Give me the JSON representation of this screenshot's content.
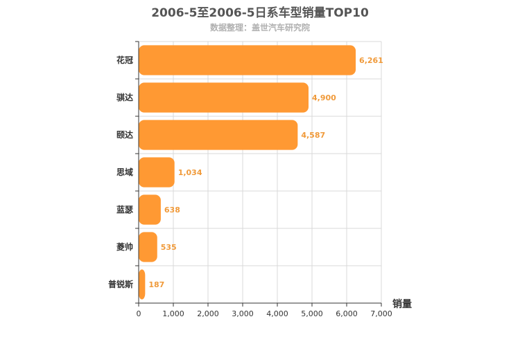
{
  "chart_data": {
    "type": "bar",
    "orientation": "horizontal",
    "title": "2006-5至2006-5日系车型销量TOP10",
    "subtitle": "数据整理：盖世汽车研究院",
    "categories": [
      "花冠",
      "骐达",
      "颐达",
      "思域",
      "蓝瑟",
      "菱帅",
      "普锐斯"
    ],
    "values": [
      6261,
      4900,
      4587,
      1034,
      638,
      535,
      187
    ],
    "value_labels": [
      "6,261",
      "4,900",
      "4,587",
      "1,034",
      "638",
      "535",
      "187"
    ],
    "xlabel": "销量",
    "xlim": [
      0,
      7000
    ],
    "xticks": [
      0,
      1000,
      2000,
      3000,
      4000,
      5000,
      6000,
      7000
    ],
    "xtick_labels": [
      "0",
      "1,000",
      "2,000",
      "3,000",
      "4,000",
      "5,000",
      "6,000",
      "7,000"
    ],
    "grid": true,
    "bar_color": "#ff9933",
    "label_color": "#f09a3a"
  }
}
